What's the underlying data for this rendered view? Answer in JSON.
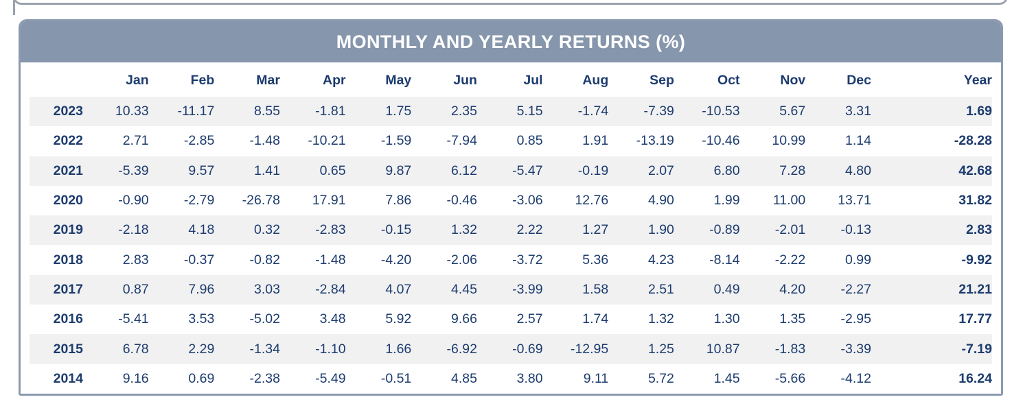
{
  "colors": {
    "header_bg": "#8696ac",
    "card_border": "#8c9ab0",
    "text_navy": "#1d3c6e",
    "row_alt_bg": "#f1f1f2",
    "title_text": "#ffffff"
  },
  "chart_data": {
    "type": "table",
    "title": "MONTHLY AND YEARLY RETURNS (%)",
    "columns": [
      "",
      "Jan",
      "Feb",
      "Mar",
      "Apr",
      "May",
      "Jun",
      "Jul",
      "Aug",
      "Sep",
      "Oct",
      "Nov",
      "Dec",
      "Year"
    ],
    "rows": [
      {
        "year": "2023",
        "values": [
          "10.33",
          "-11.17",
          "8.55",
          "-1.81",
          "1.75",
          "2.35",
          "5.15",
          "-1.74",
          "-7.39",
          "-10.53",
          "5.67",
          "3.31"
        ],
        "year_total": "1.69"
      },
      {
        "year": "2022",
        "values": [
          "2.71",
          "-2.85",
          "-1.48",
          "-10.21",
          "-1.59",
          "-7.94",
          "0.85",
          "1.91",
          "-13.19",
          "-10.46",
          "10.99",
          "1.14"
        ],
        "year_total": "-28.28"
      },
      {
        "year": "2021",
        "values": [
          "-5.39",
          "9.57",
          "1.41",
          "0.65",
          "9.87",
          "6.12",
          "-5.47",
          "-0.19",
          "2.07",
          "6.80",
          "7.28",
          "4.80"
        ],
        "year_total": "42.68"
      },
      {
        "year": "2020",
        "values": [
          "-0.90",
          "-2.79",
          "-26.78",
          "17.91",
          "7.86",
          "-0.46",
          "-3.06",
          "12.76",
          "4.90",
          "1.99",
          "11.00",
          "13.71"
        ],
        "year_total": "31.82"
      },
      {
        "year": "2019",
        "values": [
          "-2.18",
          "4.18",
          "0.32",
          "-2.83",
          "-0.15",
          "1.32",
          "2.22",
          "1.27",
          "1.90",
          "-0.89",
          "-2.01",
          "-0.13"
        ],
        "year_total": "2.83"
      },
      {
        "year": "2018",
        "values": [
          "2.83",
          "-0.37",
          "-0.82",
          "-1.48",
          "-4.20",
          "-2.06",
          "-3.72",
          "5.36",
          "4.23",
          "-8.14",
          "-2.22",
          "0.99"
        ],
        "year_total": "-9.92"
      },
      {
        "year": "2017",
        "values": [
          "0.87",
          "7.96",
          "3.03",
          "-2.84",
          "4.07",
          "4.45",
          "-3.99",
          "1.58",
          "2.51",
          "0.49",
          "4.20",
          "-2.27"
        ],
        "year_total": "21.21"
      },
      {
        "year": "2016",
        "values": [
          "-5.41",
          "3.53",
          "-5.02",
          "3.48",
          "5.92",
          "9.66",
          "2.57",
          "1.74",
          "1.32",
          "1.30",
          "1.35",
          "-2.95"
        ],
        "year_total": "17.77"
      },
      {
        "year": "2015",
        "values": [
          "6.78",
          "2.29",
          "-1.34",
          "-1.10",
          "1.66",
          "-6.92",
          "-0.69",
          "-12.95",
          "1.25",
          "10.87",
          "-1.83",
          "-3.39"
        ],
        "year_total": "-7.19"
      },
      {
        "year": "2014",
        "values": [
          "9.16",
          "0.69",
          "-2.38",
          "-5.49",
          "-0.51",
          "4.85",
          "3.80",
          "9.11",
          "5.72",
          "1.45",
          "-5.66",
          "-4.12"
        ],
        "year_total": "16.24"
      }
    ]
  }
}
